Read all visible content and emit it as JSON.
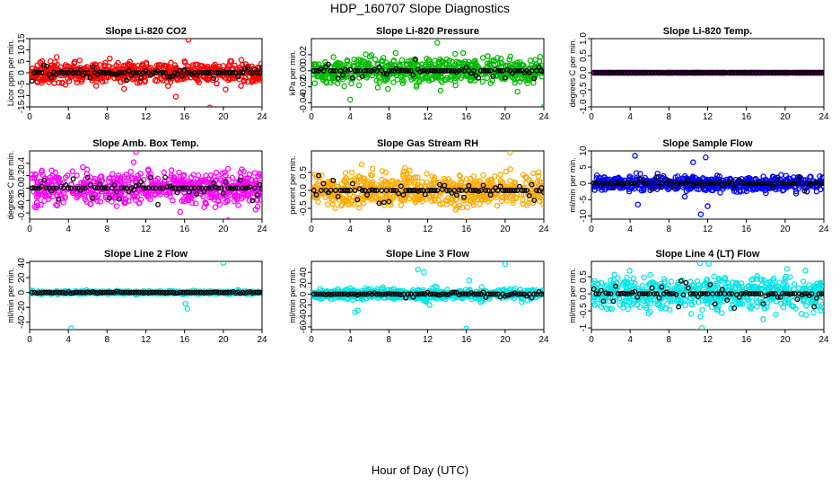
{
  "title": "HDP_160707  Slope Diagnostics",
  "xlabel": "Hour of Day (UTC)",
  "chart_data": [
    {
      "type": "scatter",
      "title": "Slope Li-820 CO2",
      "ylabel": "Licor ppm per min.",
      "color": "#ff0000",
      "xlim": [
        0,
        24
      ],
      "ylim": [
        -15,
        15
      ],
      "yticks": [
        -15,
        -10,
        -5,
        0,
        5,
        10,
        15
      ],
      "xticks": [
        0,
        4,
        8,
        12,
        16,
        20,
        24
      ],
      "spread": 2.8,
      "black_spread": 2.4,
      "outliers": [
        [
          16.4,
          14.5
        ],
        [
          18.6,
          -15.3
        ],
        [
          15.1,
          -10.5
        ]
      ]
    },
    {
      "type": "scatter",
      "title": "Slope Li-820 Pressure",
      "ylabel": "kPa per min.",
      "color": "#00bb00",
      "xlim": [
        0,
        24
      ],
      "ylim": [
        -0.045,
        0.04
      ],
      "yticks": [
        -0.04,
        -0.02,
        0.0,
        0.02
      ],
      "xticks": [
        0,
        4,
        8,
        12,
        16,
        20,
        24
      ],
      "spread": 0.011,
      "black_spread": 0.008,
      "outliers": [
        [
          13.0,
          0.035
        ],
        [
          24.0,
          -0.045
        ],
        [
          4.0,
          -0.036
        ]
      ]
    },
    {
      "type": "scatter",
      "title": "Slope Li-820 Temp.",
      "ylabel": "degrees C per min.",
      "color": "#cc00cc",
      "xlim": [
        0,
        24
      ],
      "ylim": [
        -1,
        1
      ],
      "yticks": [
        -1.0,
        -0.5,
        0.0,
        0.5,
        1.0
      ],
      "xticks": [
        0,
        4,
        8,
        12,
        16,
        20,
        24
      ],
      "spread": 0.0,
      "black_spread": 0.0,
      "outliers": []
    },
    {
      "type": "scatter",
      "title": "Slope Amb. Box Temp.",
      "ylabel": "degrees C per min.",
      "color": "#ff00ff",
      "xlim": [
        0,
        24
      ],
      "ylim": [
        -0.5,
        0.6
      ],
      "yticks": [
        -0.4,
        -0.2,
        0.0,
        0.2,
        0.4
      ],
      "xticks": [
        0,
        4,
        8,
        12,
        16,
        20,
        24
      ],
      "spread": 0.17,
      "black_spread": 0.15,
      "outliers": [
        [
          11.0,
          0.58
        ],
        [
          20.5,
          -0.52
        ]
      ]
    },
    {
      "type": "scatter",
      "title": "Slope Gas Stream RH",
      "ylabel": "percent per min.",
      "color": "#ffaa00",
      "xlim": [
        0,
        24
      ],
      "ylim": [
        -0.8,
        1.1
      ],
      "yticks": [
        -0.5,
        0.0,
        0.5
      ],
      "xticks": [
        0,
        4,
        8,
        12,
        16,
        20,
        24
      ],
      "spread": 0.3,
      "black_spread": 0.25,
      "outliers": [
        [
          20.5,
          1.05
        ],
        [
          16.0,
          -0.85
        ]
      ]
    },
    {
      "type": "scatter",
      "title": "Slope Sample Flow",
      "ylabel": "ml/min per min.",
      "color": "#0000ff",
      "xlim": [
        0,
        24
      ],
      "ylim": [
        -11,
        10
      ],
      "yticks": [
        -10,
        -5,
        0,
        5,
        10
      ],
      "xticks": [
        0,
        4,
        8,
        12,
        16,
        20,
        24
      ],
      "spread": 1.5,
      "black_spread": 1.2,
      "outliers": [
        [
          4.5,
          8.5
        ],
        [
          4.8,
          -6.5
        ],
        [
          10.5,
          6.5
        ],
        [
          11.3,
          -9.5
        ],
        [
          11.8,
          8.0
        ],
        [
          12.0,
          -7.0
        ]
      ]
    },
    {
      "type": "scatter",
      "title": "Slope Line 2 Flow",
      "ylabel": "ml/min per min.",
      "color": "#00e5e5",
      "xlim": [
        0,
        24
      ],
      "ylim": [
        -50,
        42
      ],
      "yticks": [
        -40,
        -20,
        0,
        20,
        40
      ],
      "xticks": [
        0,
        4,
        8,
        12,
        16,
        20,
        24
      ],
      "spread": 1.2,
      "black_spread": 0.8,
      "outliers": [
        [
          4.3,
          -48
        ],
        [
          16.1,
          -15
        ],
        [
          16.3,
          -22
        ],
        [
          20.0,
          40
        ]
      ]
    },
    {
      "type": "scatter",
      "title": "Slope Line 3 Flow",
      "ylabel": "ml/min per min.",
      "color": "#00e5e5",
      "xlim": [
        0,
        24
      ],
      "ylim": [
        -65,
        60
      ],
      "yticks": [
        -60,
        -40,
        -20,
        0,
        20,
        40
      ],
      "xticks": [
        0,
        4,
        8,
        12,
        16,
        20,
        24
      ],
      "spread": 6,
      "black_spread": 5,
      "outliers": [
        [
          4.5,
          -33
        ],
        [
          4.8,
          -30
        ],
        [
          11.0,
          45
        ],
        [
          11.6,
          40
        ],
        [
          12.2,
          -20
        ],
        [
          16.0,
          -63
        ],
        [
          20.0,
          55
        ],
        [
          16.3,
          25
        ]
      ]
    },
    {
      "type": "scatter",
      "title": "Slope Line 4 (LT) Flow",
      "ylabel": "ml/min per min.",
      "color": "#00e5e5",
      "xlim": [
        0,
        24
      ],
      "ylim": [
        -1.05,
        0.95
      ],
      "yticks": [
        -1.0,
        -0.5,
        0.0,
        0.5
      ],
      "xticks": [
        0,
        4,
        8,
        12,
        16,
        20,
        24
      ],
      "spread": 0.32,
      "black_spread": 0.25,
      "outliers": [
        [
          11.4,
          -1.0
        ],
        [
          11.2,
          0.9
        ],
        [
          12.1,
          0.88
        ]
      ]
    }
  ]
}
